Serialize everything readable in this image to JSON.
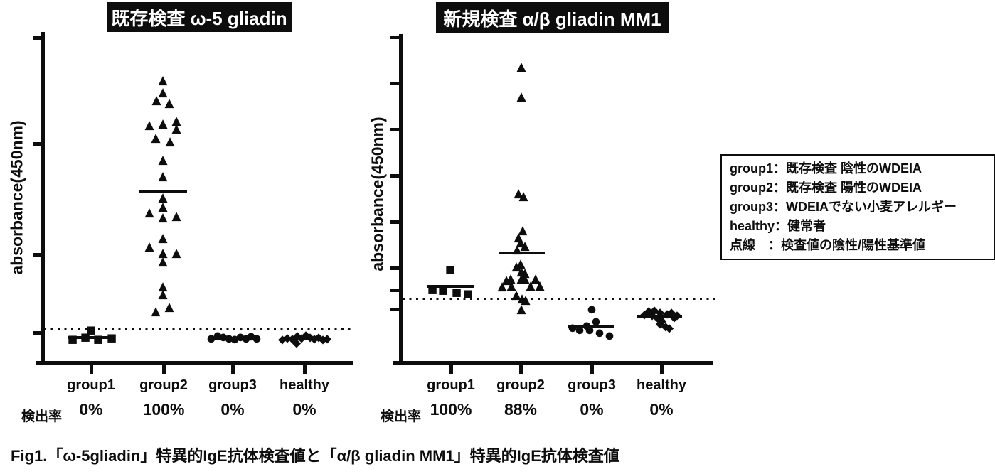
{
  "figure": {
    "caption": "Fig1.「ω-5gliadin」特異的IgE抗体検査値と「α/β gliadin MM1」特異的IgE抗体検査値"
  },
  "legend": {
    "items": [
      "group1：既存検査 陰性のWDEIA",
      "group2：既存検査 陽性のWDEIA",
      "group3：WDEIAでない小麦アレルギー",
      "healthy：健常者",
      "点線　：検査値の陰性/陽性基準値"
    ]
  },
  "colors": {
    "ink": "#0d0d0d",
    "title_bg": "#0d0d0d",
    "title_fg": "#ffffff",
    "background": "#ffffff"
  },
  "chart_data": [
    {
      "type": "scatter",
      "title": "既存検査 ω-5 gliadin",
      "ylabel": "absorbance(450nm)",
      "categories": [
        "group1",
        "group2",
        "group3",
        "healthy"
      ],
      "category_x": [
        128,
        230,
        327,
        428
      ],
      "detection": {
        "label": "検出率",
        "rates": [
          "0%",
          "100%",
          "0%",
          "0%"
        ]
      },
      "axes": {
        "y_axis_x": 58,
        "y_top": 45,
        "x_axis_y": 508,
        "x_left": 50,
        "x_right": 497,
        "y_ticks": [
          53,
          202,
          358,
          468
        ],
        "x_ticks": [
          128,
          230,
          327,
          428
        ],
        "grid": false,
        "numeric_labels": false
      },
      "threshold_line": {
        "y": 463,
        "x1": 62,
        "x2": 493,
        "meaning": "陰性/陽性基準値"
      },
      "groups": [
        {
          "name": "group1",
          "marker": "square",
          "points": [
            [
              102,
              478
            ],
            [
              120,
              475
            ],
            [
              138,
              478
            ],
            [
              157,
              476
            ],
            [
              128,
              465
            ]
          ],
          "mean_line": {
            "y": 475,
            "x1": 96,
            "x2": 161
          }
        },
        {
          "name": "group2",
          "marker": "triangle",
          "points": [
            [
              229,
              114
            ],
            [
              229,
              131
            ],
            [
              220,
              142
            ],
            [
              238,
              146
            ],
            [
              210,
              177
            ],
            [
              229,
              175
            ],
            [
              248,
              171
            ],
            [
              248,
              182
            ],
            [
              219,
              195
            ],
            [
              239,
              200
            ],
            [
              229,
              226
            ],
            [
              229,
              249
            ],
            [
              229,
              279
            ],
            [
              229,
              292
            ],
            [
              210,
              300
            ],
            [
              229,
              307
            ],
            [
              248,
              305
            ],
            [
              229,
              336
            ],
            [
              210,
              348
            ],
            [
              229,
              357
            ],
            [
              248,
              357
            ],
            [
              229,
              369
            ],
            [
              229,
              404
            ],
            [
              229,
              415
            ],
            [
              219,
              439
            ],
            [
              238,
              433
            ]
          ],
          "mean_line": {
            "y": 270,
            "x1": 195,
            "x2": 263
          }
        },
        {
          "name": "group3",
          "marker": "circle",
          "points": [
            [
              297,
              477
            ],
            [
              306,
              473
            ],
            [
              314,
              475
            ],
            [
              322,
              477
            ],
            [
              330,
              478
            ],
            [
              338,
              475
            ],
            [
              346,
              477
            ],
            [
              353,
              474
            ],
            [
              361,
              477
            ]
          ],
          "mean_line": {
            "y": 476,
            "x1": 294,
            "x2": 361
          }
        },
        {
          "name": "healthy",
          "marker": "diamond",
          "points": [
            [
              397,
              478
            ],
            [
              404,
              476
            ],
            [
              411,
              477
            ],
            [
              418,
              473
            ],
            [
              424,
              476
            ],
            [
              430,
              472
            ],
            [
              436,
              475
            ],
            [
              442,
              477
            ],
            [
              448,
              475
            ],
            [
              454,
              478
            ],
            [
              460,
              477
            ],
            [
              417,
              483
            ]
          ],
          "mean_line": {
            "y": 476,
            "x1": 395,
            "x2": 461
          }
        }
      ]
    },
    {
      "type": "scatter",
      "title": "新規検査 α/β gliadin MM1",
      "ylabel": "absorbance(450nm)",
      "categories": [
        "group1",
        "group2",
        "group3",
        "healthy"
      ],
      "category_x": [
        634,
        732,
        832,
        930
      ],
      "detection": {
        "label": "検出率",
        "rates": [
          "100%",
          "88%",
          "0%",
          "0%"
        ]
      },
      "axes": {
        "y_axis_x": 561,
        "y_top": 48,
        "x_axis_y": 508,
        "x_left": 553,
        "x_right": 1002,
        "y_ticks": [
          52,
          117,
          182,
          247,
          312,
          377,
          408,
          435
        ],
        "x_ticks": [
          634,
          732,
          832,
          930
        ],
        "grid": false,
        "numeric_labels": false
      },
      "threshold_line": {
        "y": 420,
        "x1": 566,
        "x2": 1010,
        "meaning": "陰性/陽性基準値"
      },
      "groups": [
        {
          "name": "group1",
          "marker": "square",
          "points": [
            [
              633,
              380
            ],
            [
              608,
              408
            ],
            [
              623,
              409
            ],
            [
              642,
              412
            ],
            [
              658,
              414
            ]
          ],
          "mean_line": {
            "y": 403,
            "x1": 601,
            "x2": 666
          }
        },
        {
          "name": "group2",
          "marker": "triangle",
          "points": [
            [
              733,
              95
            ],
            [
              733,
              137
            ],
            [
              729,
              273
            ],
            [
              736,
              277
            ],
            [
              735,
              325
            ],
            [
              729,
              335
            ],
            [
              732,
              342
            ],
            [
              738,
              347
            ],
            [
              727,
              352
            ],
            [
              732,
              372
            ],
            [
              726,
              376
            ],
            [
              733,
              383
            ],
            [
              738,
              385
            ],
            [
              712,
              395
            ],
            [
              718,
              393
            ],
            [
              733,
              393
            ],
            [
              738,
              393
            ],
            [
              753,
              393
            ],
            [
              706,
              404
            ],
            [
              719,
              403
            ],
            [
              746,
              403
            ],
            [
              759,
              403
            ],
            [
              726,
              416
            ],
            [
              734,
              421
            ],
            [
              739,
              423
            ],
            [
              733,
              436
            ]
          ],
          "mean_line": {
            "y": 356,
            "x1": 702,
            "x2": 766
          }
        },
        {
          "name": "group3",
          "marker": "circle",
          "points": [
            [
              832,
              436
            ],
            [
              838,
              453
            ],
            [
              805,
              462
            ],
            [
              815,
              465
            ],
            [
              825,
              459
            ],
            [
              829,
              465
            ],
            [
              843,
              469
            ],
            [
              857,
              473
            ]
          ],
          "mean_line": {
            "y": 459,
            "x1": 799,
            "x2": 864
          }
        },
        {
          "name": "healthy",
          "marker": "diamond",
          "points": [
            [
              906,
              443
            ],
            [
              912,
              438
            ],
            [
              920,
              437
            ],
            [
              928,
              440
            ],
            [
              938,
              442
            ],
            [
              944,
              440
            ],
            [
              952,
              444
            ],
            [
              948,
              447
            ],
            [
              917,
              444
            ],
            [
              925,
              448
            ],
            [
              931,
              452
            ],
            [
              928,
              456
            ],
            [
              936,
              460
            ],
            [
              941,
              462
            ]
          ],
          "mean_line": {
            "y": 445,
            "x1": 895,
            "x2": 959
          }
        }
      ]
    }
  ]
}
